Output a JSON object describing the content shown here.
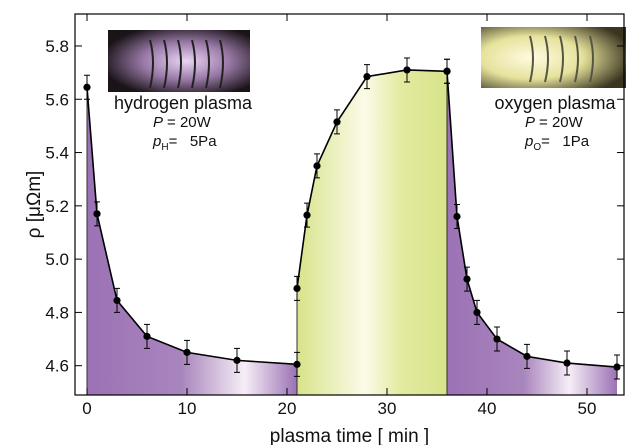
{
  "chart_data": {
    "type": "line",
    "x_label": "plasma time [ min ]",
    "y_label": "ρ [μΩm]",
    "xlim": [
      -1.2,
      53.7
    ],
    "ylim": [
      4.49,
      5.92
    ],
    "xticks": [
      0,
      10,
      20,
      30,
      40,
      50
    ],
    "yticks": [
      4.6,
      4.8,
      {
        "value": 5,
        "label": "5.0"
      },
      5.2,
      5.4,
      5.6,
      5.8
    ],
    "series": [
      {
        "color": "#9b72b5",
        "x": [
          0,
          1,
          3,
          6,
          10,
          15,
          21
        ],
        "values": [
          5.645,
          5.17,
          4.845,
          4.71,
          4.65,
          4.62,
          4.605
        ],
        "errors": [
          0.045,
          0.045,
          0.045,
          0.045,
          0.045,
          0.045,
          0.045
        ]
      },
      {
        "color": "#d8e38a",
        "x": [
          21,
          22,
          23,
          25,
          28,
          32,
          36
        ],
        "values": [
          4.89,
          5.165,
          5.35,
          5.515,
          5.685,
          5.71,
          5.705
        ],
        "errors": [
          0.045,
          0.045,
          0.045,
          0.045,
          0.045,
          0.045,
          0.045
        ]
      },
      {
        "color": "#9b72b5",
        "x": [
          36,
          37,
          38,
          39,
          41,
          44,
          48,
          53
        ],
        "values": [
          5.705,
          5.16,
          4.925,
          4.8,
          4.7,
          4.635,
          4.61,
          4.595
        ],
        "errors": [
          0.045,
          0.045,
          0.045,
          0.045,
          0.045,
          0.045,
          0.045,
          0.045
        ]
      }
    ],
    "annotations": [
      {
        "label": "hydrogen plasma",
        "power": {
          "symbol": "P",
          "text": "= 20W"
        },
        "pressure": {
          "symbol": "p",
          "subscript": "H",
          "text": "=   5Pa"
        }
      },
      {
        "label": "oxygen plasma",
        "power": {
          "symbol": "P",
          "text": "= 20W"
        },
        "pressure": {
          "symbol": "p",
          "subscript": "O",
          "text": "=   1Pa"
        }
      }
    ]
  }
}
